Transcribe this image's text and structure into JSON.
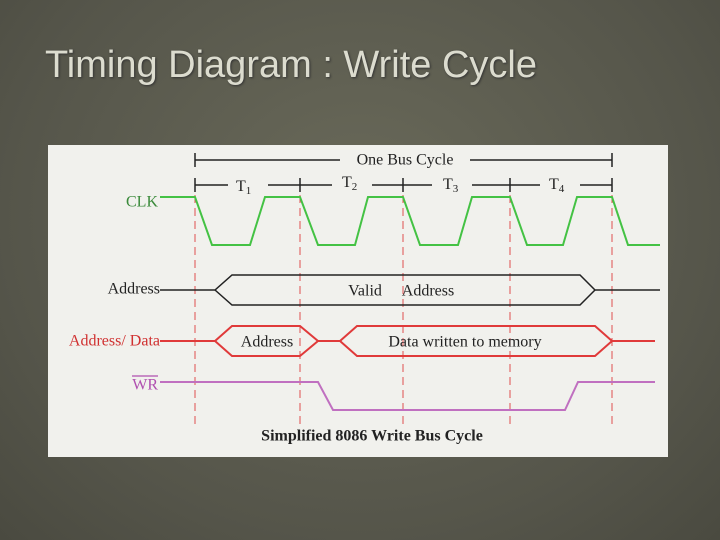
{
  "header": {
    "title": "Timing Diagram : Write Cycle"
  },
  "diagram": {
    "bus_cycle": "One Bus Cycle",
    "periods": [
      {
        "name": "T",
        "sub": "1"
      },
      {
        "name": "T",
        "sub": "2"
      },
      {
        "name": "T",
        "sub": "3"
      },
      {
        "name": "T",
        "sub": "4"
      }
    ],
    "signals": [
      "CLK",
      "Address",
      "Address/ Data",
      "WR"
    ],
    "address_labels": [
      "Valid",
      "Address"
    ],
    "ad_labels": [
      "Address",
      "Data written to memory"
    ],
    "caption": "Simplified 8086 Write Bus Cycle"
  }
}
